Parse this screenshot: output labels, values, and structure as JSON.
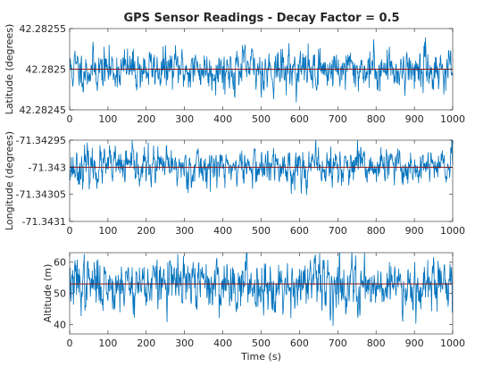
{
  "figure": {
    "title": "GPS Sensor Readings - Decay Factor = 0.5"
  },
  "chart_data": [
    {
      "type": "line",
      "title": "GPS Sensor Readings - Decay Factor = 0.5",
      "xlabel": "",
      "ylabel": "Latitude (degrees)",
      "xlim": [
        0,
        1000
      ],
      "ylim": [
        42.28245,
        42.28255
      ],
      "xticks": [
        0,
        100,
        200,
        300,
        400,
        500,
        600,
        700,
        800,
        900,
        1000
      ],
      "xtick_labels": [
        "0",
        "100",
        "200",
        "300",
        "400",
        "500",
        "600",
        "700",
        "800",
        "900",
        "1000"
      ],
      "yticks": [
        42.28245,
        42.2825,
        42.28255
      ],
      "ytick_labels": [
        "42.28245",
        "42.2825",
        "42.28255"
      ],
      "reference_line": 42.2825,
      "noise": {
        "mean": 42.2825,
        "std": 1.3e-05,
        "samples": 1000,
        "seed": 11,
        "corr": 0.45
      },
      "grid": false,
      "legend": "none",
      "line_color": "#0072bd",
      "ref_color": "#8b1a1a"
    },
    {
      "type": "line",
      "title": "",
      "xlabel": "",
      "ylabel": "Longitude (degrees)",
      "xlim": [
        0,
        1000
      ],
      "ylim": [
        -71.3431,
        -71.34295
      ],
      "xticks": [
        0,
        100,
        200,
        300,
        400,
        500,
        600,
        700,
        800,
        900,
        1000
      ],
      "xtick_labels": [
        "0",
        "100",
        "200",
        "300",
        "400",
        "500",
        "600",
        "700",
        "800",
        "900",
        "1000"
      ],
      "yticks": [
        -71.3431,
        -71.34305,
        -71.343,
        -71.34295
      ],
      "ytick_labels": [
        "-71.3431",
        "-71.34305",
        "-71.343",
        "-71.34295"
      ],
      "reference_line": -71.343,
      "noise": {
        "mean": -71.343,
        "std": 1.75e-05,
        "samples": 1000,
        "seed": 23,
        "corr": 0.45
      },
      "grid": false,
      "legend": "none",
      "line_color": "#0072bd",
      "ref_color": "#8b1a1a"
    },
    {
      "type": "line",
      "title": "",
      "xlabel": "Time (s)",
      "ylabel": "Altitude (m)",
      "xlim": [
        0,
        1000
      ],
      "ylim": [
        37,
        63
      ],
      "xticks": [
        0,
        100,
        200,
        300,
        400,
        500,
        600,
        700,
        800,
        900,
        1000
      ],
      "xtick_labels": [
        "0",
        "100",
        "200",
        "300",
        "400",
        "500",
        "600",
        "700",
        "800",
        "900",
        "1000"
      ],
      "yticks": [
        40,
        50,
        60
      ],
      "ytick_labels": [
        "40",
        "50",
        "60"
      ],
      "reference_line": 53,
      "noise": {
        "mean": 53,
        "std": 4.2,
        "samples": 1000,
        "seed": 37,
        "corr": 0.45
      },
      "grid": false,
      "legend": "none",
      "line_color": "#0072bd",
      "ref_color": "#8b1a1a"
    }
  ]
}
